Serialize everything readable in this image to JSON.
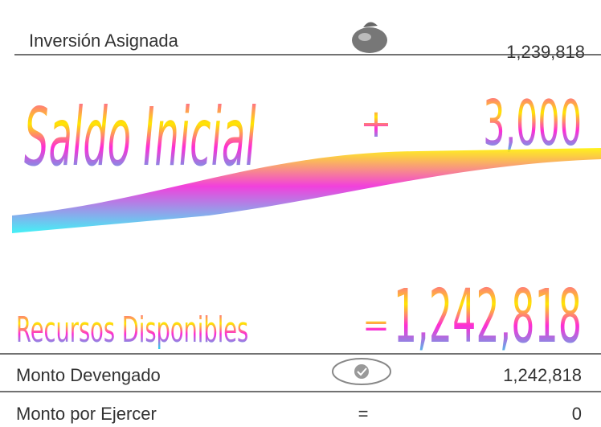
{
  "rows": [
    {
      "label": "Inversión Asignada",
      "amount": "1,239,818"
    },
    {
      "label": "Saldo Inicial",
      "operator": "+",
      "amount": "3,000"
    },
    {
      "label": "Recursos Disponibles",
      "operator": "=",
      "amount": "1,242,818"
    },
    {
      "label": "Monto Devengado",
      "amount": "1,242,818"
    },
    {
      "label": "Monto por Ejercer",
      "operator": "=",
      "amount": "0"
    }
  ]
}
